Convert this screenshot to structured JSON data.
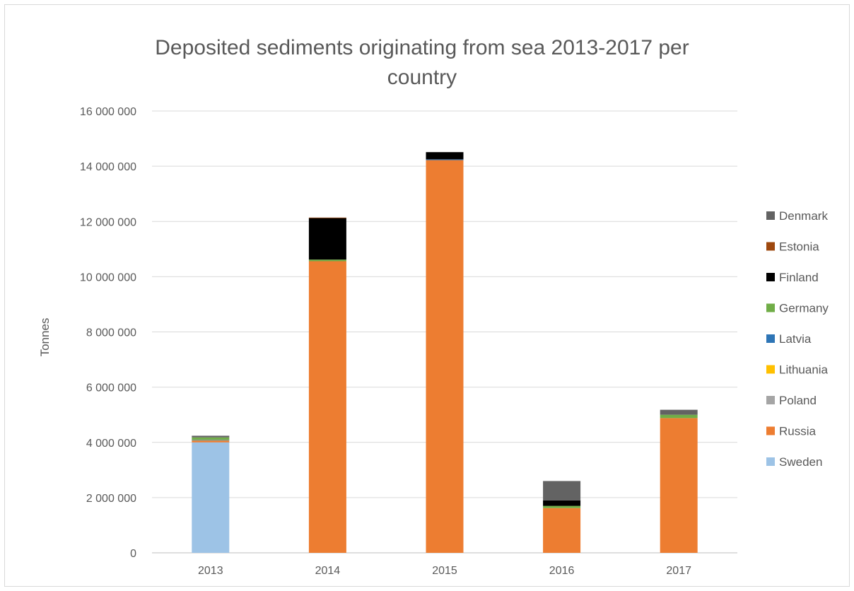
{
  "chart_data": {
    "type": "bar",
    "stacked": true,
    "title_lines": [
      "Deposited sediments originating from sea 2013-2017 per",
      "country"
    ],
    "ylabel": "Tonnes",
    "xlabel": "",
    "ylim": [
      0,
      16000000
    ],
    "yticks": [
      0,
      2000000,
      4000000,
      6000000,
      8000000,
      10000000,
      12000000,
      14000000,
      16000000
    ],
    "ytick_labels": [
      "0",
      "2 000 000",
      "4 000 000",
      "6 000 000",
      "8 000 000",
      "10 000 000",
      "12 000 000",
      "14 000 000",
      "16 000 000"
    ],
    "categories": [
      "2013",
      "2014",
      "2015",
      "2016",
      "2017"
    ],
    "grid": true,
    "legend_position": "right",
    "series": [
      {
        "name": "Sweden",
        "color": "#9dc3e6",
        "values": [
          4000000,
          0,
          0,
          0,
          0
        ]
      },
      {
        "name": "Russia",
        "color": "#ed7d31",
        "values": [
          60000,
          10560000,
          14220000,
          1620000,
          4880000
        ]
      },
      {
        "name": "Poland",
        "color": "#a5a5a5",
        "values": [
          20000,
          0,
          0,
          0,
          0
        ]
      },
      {
        "name": "Lithuania",
        "color": "#ffc000",
        "values": [
          10000,
          0,
          0,
          0,
          0
        ]
      },
      {
        "name": "Latvia",
        "color": "#2e75b6",
        "values": [
          10000,
          0,
          30000,
          0,
          0
        ]
      },
      {
        "name": "Germany",
        "color": "#70ad47",
        "values": [
          80000,
          60000,
          0,
          80000,
          120000
        ]
      },
      {
        "name": "Finland",
        "color": "#000000",
        "values": [
          0,
          1500000,
          260000,
          200000,
          0
        ]
      },
      {
        "name": "Estonia",
        "color": "#9e480e",
        "values": [
          0,
          20000,
          0,
          0,
          0
        ]
      },
      {
        "name": "Denmark",
        "color": "#636363",
        "values": [
          60000,
          0,
          0,
          700000,
          180000
        ]
      }
    ],
    "legend_order": [
      "Denmark",
      "Estonia",
      "Finland",
      "Germany",
      "Latvia",
      "Lithuania",
      "Poland",
      "Russia",
      "Sweden"
    ]
  }
}
